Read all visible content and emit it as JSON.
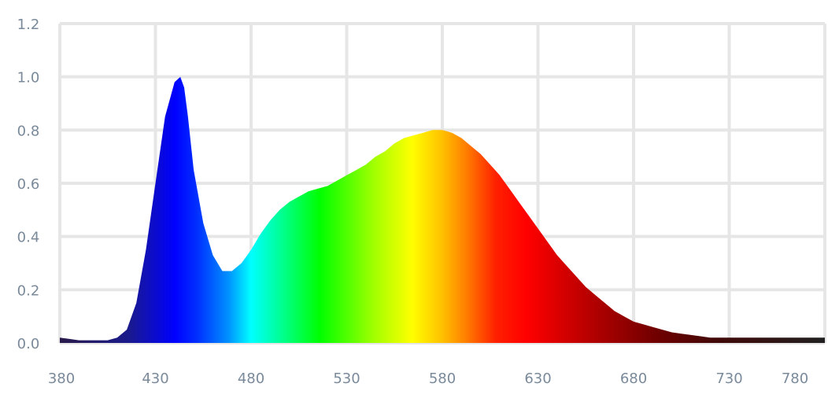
{
  "chart_data": {
    "type": "area",
    "title": "",
    "xlabel": "",
    "ylabel": "",
    "xlim": [
      380,
      780
    ],
    "ylim": [
      0,
      1.2
    ],
    "grid": true,
    "legend": "none",
    "x_ticks": [
      "380",
      "430",
      "480",
      "530",
      "580",
      "630",
      "680",
      "730",
      "780"
    ],
    "x_tick_values": [
      380,
      430,
      480,
      530,
      580,
      630,
      680,
      730,
      780
    ],
    "y_ticks": [
      "0.0",
      "0.2",
      "0.4",
      "0.6",
      "0.8",
      "1.0",
      "1.2"
    ],
    "y_tick_values": [
      0,
      0.2,
      0.4,
      0.6,
      0.8,
      1.0,
      1.2
    ],
    "fill": "visible-spectrum gradient (violet-blue-cyan-green-yellow-orange-red-dark red)",
    "series": [
      {
        "x": [
          380,
          385,
          390,
          395,
          400,
          405,
          410,
          415,
          420,
          425,
          430,
          435,
          440,
          443,
          445,
          447,
          450,
          455,
          460,
          465,
          470,
          475,
          480,
          485,
          490,
          495,
          500,
          505,
          510,
          515,
          520,
          525,
          530,
          535,
          540,
          545,
          550,
          555,
          560,
          565,
          570,
          575,
          580,
          585,
          590,
          595,
          600,
          605,
          610,
          615,
          620,
          625,
          630,
          635,
          640,
          645,
          650,
          655,
          660,
          665,
          670,
          675,
          680,
          685,
          690,
          695,
          700,
          705,
          710,
          715,
          720,
          725,
          730,
          735,
          740,
          745,
          750,
          755,
          760,
          765,
          770,
          775,
          780
        ],
        "y": [
          0.02,
          0.015,
          0.01,
          0.01,
          0.01,
          0.01,
          0.02,
          0.05,
          0.15,
          0.35,
          0.6,
          0.85,
          0.98,
          1.0,
          0.96,
          0.85,
          0.65,
          0.45,
          0.33,
          0.27,
          0.27,
          0.3,
          0.35,
          0.41,
          0.46,
          0.5,
          0.53,
          0.55,
          0.57,
          0.58,
          0.59,
          0.61,
          0.63,
          0.65,
          0.67,
          0.7,
          0.72,
          0.75,
          0.77,
          0.78,
          0.79,
          0.8,
          0.8,
          0.79,
          0.77,
          0.74,
          0.71,
          0.67,
          0.63,
          0.58,
          0.53,
          0.48,
          0.43,
          0.38,
          0.33,
          0.29,
          0.25,
          0.21,
          0.18,
          0.15,
          0.12,
          0.1,
          0.08,
          0.07,
          0.06,
          0.05,
          0.04,
          0.035,
          0.03,
          0.025,
          0.02,
          0.02,
          0.02,
          0.02,
          0.02,
          0.02,
          0.02,
          0.02,
          0.02,
          0.02,
          0.02,
          0.02,
          0.02
        ]
      }
    ]
  }
}
